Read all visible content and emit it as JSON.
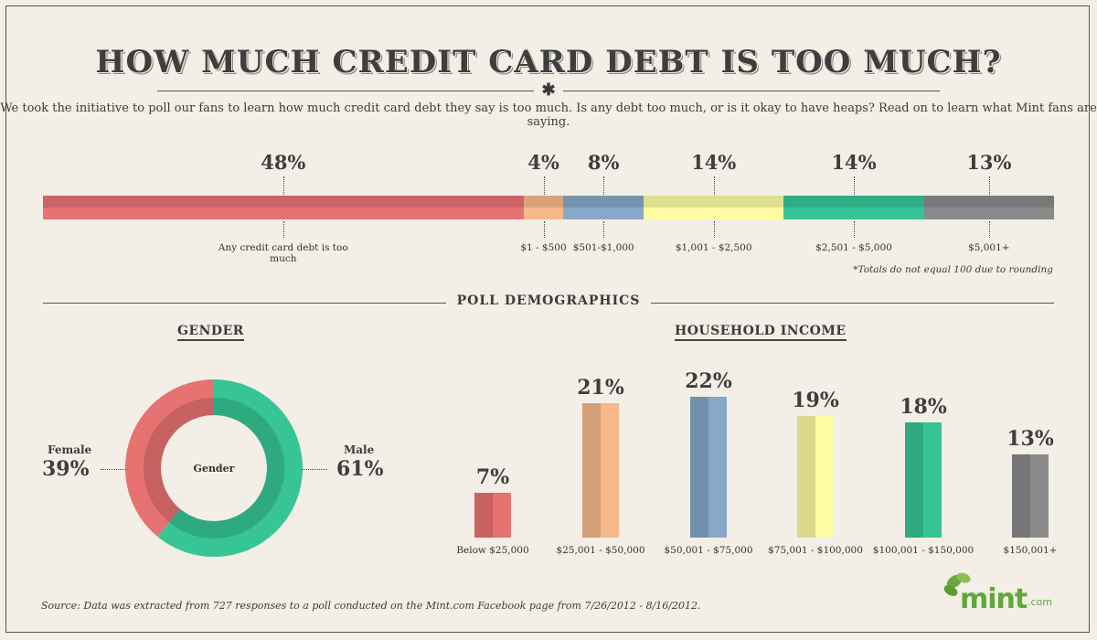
{
  "title": "How much credit card debt is too much?",
  "intro": "We took the initiative to poll our fans to learn how much credit card debt they say is too much.  Is any debt too much, or is it okay to have heaps? Read on to learn what Mint fans are saying.",
  "footnote": "*Totals do not equal 100 due to rounding",
  "section_title": "POLL DEMOGRAPHICS",
  "gender_heading": "Gender",
  "income_heading": "Household Income",
  "source": "Source: Data was extracted from 727 responses to a poll conducted on the Mint.com Facebook page from 7/26/2012 - 8/16/2012.",
  "logo": {
    "word": "mint",
    "suffix": ".com"
  },
  "colors": {
    "red": "#e77272",
    "red_dark": "#c8605f",
    "peach": "#f7b88a",
    "blue": "#85a9c6",
    "yellow": "#fdfca2",
    "green": "#37c595",
    "gray": "#8a8a8a"
  },
  "chart_data": [
    {
      "type": "bar",
      "orientation": "stacked-horizontal",
      "categories": [
        "Any credit card debt is too much",
        "$1 - $500",
        "$501-$1,000",
        "$1,001 - $2,500",
        "$2,501 - $5,000",
        "$5,001+"
      ],
      "values": [
        48,
        4,
        8,
        14,
        14,
        13
      ],
      "value_labels": [
        "48%",
        "4%",
        "8%",
        "14%",
        "14%",
        "13%"
      ],
      "colors": [
        "#e77272",
        "#f7b88a",
        "#85a9c6",
        "#fdfca2",
        "#37c595",
        "#8a8a8a"
      ]
    },
    {
      "type": "pie",
      "title": "Gender",
      "center_label": "Gender",
      "categories": [
        "Female",
        "Male"
      ],
      "values": [
        39,
        61
      ],
      "value_labels": [
        "39%",
        "61%"
      ],
      "colors": [
        "#e77272",
        "#37c595"
      ]
    },
    {
      "type": "bar",
      "title": "Household Income",
      "categories": [
        "Below $25,000",
        "$25,001 - $50,000",
        "$50,001 - $75,000",
        "$75,001 - $100,000",
        "$100,001 - $150,000",
        "$150,001+"
      ],
      "values": [
        7,
        21,
        22,
        19,
        18,
        13
      ],
      "value_labels": [
        "7%",
        "21%",
        "22%",
        "19%",
        "18%",
        "13%"
      ],
      "colors": [
        "#e77272",
        "#f7b88a",
        "#85a9c6",
        "#fdfca2",
        "#37c595",
        "#8a8a8a"
      ]
    }
  ]
}
